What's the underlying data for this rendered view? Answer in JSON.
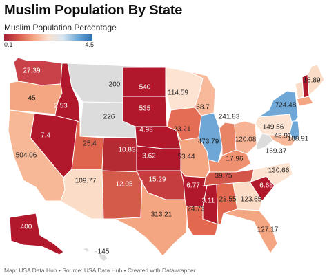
{
  "title": "Muslim Population By State",
  "subtitle": "Muslim Population Percentage",
  "legend": {
    "min": "0.1",
    "max": "4.5",
    "low_color": "#a71e34",
    "high_color": "#2c6fb3",
    "no_data_color": "#dcdcdc"
  },
  "footer": "Map: USA Data Hub • Source: USA Data Hub • Created with Datawrapper",
  "states": [
    {
      "id": "WA",
      "label": "27.39",
      "color": "#c9424a",
      "text": "light"
    },
    {
      "id": "OR",
      "label": "45",
      "color": "#f4a582",
      "text": "dark"
    },
    {
      "id": "CA",
      "label": "504.06",
      "color": "#f6b896",
      "text": "dark"
    },
    {
      "id": "ID",
      "label": "2.53",
      "color": "#b2182b",
      "text": "light"
    },
    {
      "id": "NV",
      "label": "7.4",
      "color": "#b2182b",
      "text": "light"
    },
    {
      "id": "AZ",
      "label": "109.77",
      "color": "#fbdcc6",
      "text": "dark"
    },
    {
      "id": "MT",
      "label": "200",
      "color": "#dcdcdc",
      "text": "dark"
    },
    {
      "id": "WY",
      "label": "226",
      "color": "#dcdcdc",
      "text": "dark"
    },
    {
      "id": "UT",
      "label": "25.4",
      "color": "#e0654f",
      "text": "dark"
    },
    {
      "id": "CO",
      "label": "10.83",
      "color": "#b52b33",
      "text": "light"
    },
    {
      "id": "NM",
      "label": "12.05",
      "color": "#d45a4a",
      "text": "light"
    },
    {
      "id": "ND",
      "label": "540",
      "color": "#b2182b",
      "text": "light"
    },
    {
      "id": "SD",
      "label": "535",
      "color": "#b2182b",
      "text": "light"
    },
    {
      "id": "NE",
      "label": "4.93",
      "color": "#b2182b",
      "text": "light"
    },
    {
      "id": "KS",
      "label": "3.62",
      "color": "#b2182b",
      "text": "light"
    },
    {
      "id": "OK",
      "label": "15.29",
      "color": "#c63d3f",
      "text": "light"
    },
    {
      "id": "TX",
      "label": "313.21",
      "color": "#f4a582",
      "text": "dark"
    },
    {
      "id": "MN",
      "label": "114.59",
      "color": "#fde3d1",
      "text": "dark"
    },
    {
      "id": "IA",
      "label": "23.21",
      "color": "#e46e55",
      "text": "dark"
    },
    {
      "id": "MO",
      "label": "53.44",
      "color": "#f4a582",
      "text": "dark"
    },
    {
      "id": "AR",
      "label": "6.77",
      "color": "#b2182b",
      "text": "light"
    },
    {
      "id": "LA",
      "label": "24.73",
      "color": "#e2694f",
      "text": "dark"
    },
    {
      "id": "WI",
      "label": "68.7",
      "color": "#f7b999",
      "text": "dark"
    },
    {
      "id": "IL",
      "label": "473.79",
      "color": "#6fa8d6",
      "text": "dark"
    },
    {
      "id": "MI",
      "label": "241.83",
      "color": "#ffffff",
      "text": "dark"
    },
    {
      "id": "IN",
      "label": "",
      "color": "#ea8466",
      "text": "dark"
    },
    {
      "id": "OH",
      "label": "120.08",
      "color": "#f6b395",
      "text": "dark"
    },
    {
      "id": "KY",
      "label": "39.75",
      "color": "#ef9170",
      "text": "dark"
    },
    {
      "id": "TN",
      "label": "17.96",
      "color": "#d4564a",
      "text": "dark"
    },
    {
      "id": "MS",
      "label": "3.11",
      "color": "#b2182b",
      "text": "light"
    },
    {
      "id": "AL",
      "label": "23.55",
      "color": "#e2694f",
      "text": "dark"
    },
    {
      "id": "GA",
      "label": "123.65",
      "color": "#fbdcc6",
      "text": "dark"
    },
    {
      "id": "FL",
      "label": "127.17",
      "color": "#f4a582",
      "text": "dark"
    },
    {
      "id": "SC",
      "label": "6.68",
      "color": "#b2182b",
      "text": "light"
    },
    {
      "id": "NC",
      "label": "130.66",
      "color": "#fde3d1",
      "text": "dark"
    },
    {
      "id": "VA",
      "label": "169.37",
      "color": "#ffffff",
      "text": "dark"
    },
    {
      "id": "WV",
      "label": "",
      "color": "#dcdcdc",
      "text": "dark"
    },
    {
      "id": "PA",
      "label": "149.56",
      "color": "#fde3d1",
      "text": "dark"
    },
    {
      "id": "NY",
      "label": "724.48",
      "color": "#6fa8d6",
      "text": "dark"
    },
    {
      "id": "NJ",
      "label": "188.91",
      "color": "#6fa8d6",
      "text": "dark"
    },
    {
      "id": "MD",
      "label": "43.91",
      "color": "#f7b999",
      "text": "dark"
    },
    {
      "id": "VT",
      "label": "",
      "color": "#fbdcc6",
      "text": "dark"
    },
    {
      "id": "NH",
      "label": "",
      "color": "#b2182b",
      "text": "light"
    },
    {
      "id": "MA",
      "label": "",
      "color": "#f4a582",
      "text": "dark"
    },
    {
      "id": "ME",
      "label": "16.89",
      "color": "#fbdcc6",
      "text": "dark"
    },
    {
      "id": "AK",
      "label": "400",
      "color": "#b2182b",
      "text": "light"
    },
    {
      "id": "HI",
      "label": "145",
      "color": "#dcdcdc",
      "text": "dark"
    }
  ]
}
